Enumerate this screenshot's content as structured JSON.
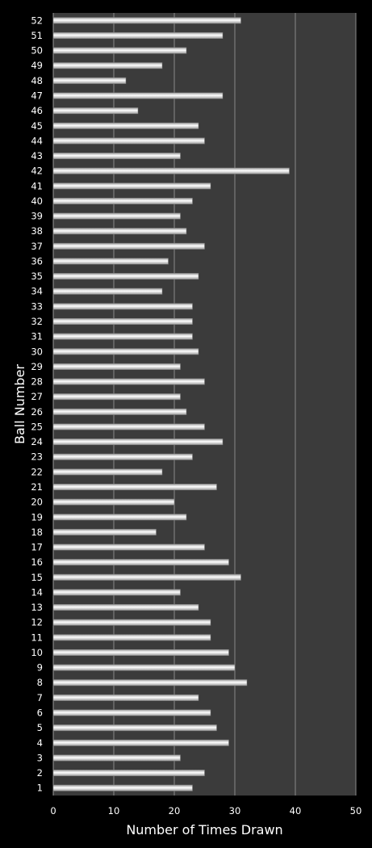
{
  "chart_data": {
    "type": "bar",
    "orientation": "horizontal",
    "xlabel": "Number of Times Drawn",
    "ylabel": "Ball Number",
    "xlim": [
      0,
      50
    ],
    "x_ticks": [
      "0",
      "10",
      "20",
      "30",
      "40",
      "50"
    ],
    "grid": true,
    "legend": "none",
    "categories": [
      "1",
      "2",
      "3",
      "4",
      "5",
      "6",
      "7",
      "8",
      "9",
      "10",
      "11",
      "12",
      "13",
      "14",
      "15",
      "16",
      "17",
      "18",
      "19",
      "20",
      "21",
      "22",
      "23",
      "24",
      "25",
      "26",
      "27",
      "28",
      "29",
      "30",
      "31",
      "32",
      "33",
      "34",
      "35",
      "36",
      "37",
      "38",
      "39",
      "40",
      "41",
      "42",
      "43",
      "44",
      "45",
      "46",
      "47",
      "48",
      "49",
      "50",
      "51",
      "52"
    ],
    "values": [
      23,
      25,
      21,
      29,
      27,
      26,
      24,
      32,
      30,
      29,
      26,
      26,
      24,
      21,
      31,
      29,
      25,
      17,
      22,
      20,
      27,
      18,
      23,
      28,
      25,
      22,
      21,
      25,
      21,
      24,
      23,
      23,
      23,
      18,
      24,
      19,
      25,
      22,
      21,
      23,
      26,
      39,
      21,
      25,
      24,
      14,
      28,
      12,
      18,
      22,
      28,
      31
    ],
    "colors": {
      "background": "#000000",
      "plot_area": "#3b3b3b",
      "gridline": "#8a8a8a",
      "bar_light": "#ffffff",
      "bar_dark": "#9a9a9a",
      "text": "#ffffff"
    }
  }
}
